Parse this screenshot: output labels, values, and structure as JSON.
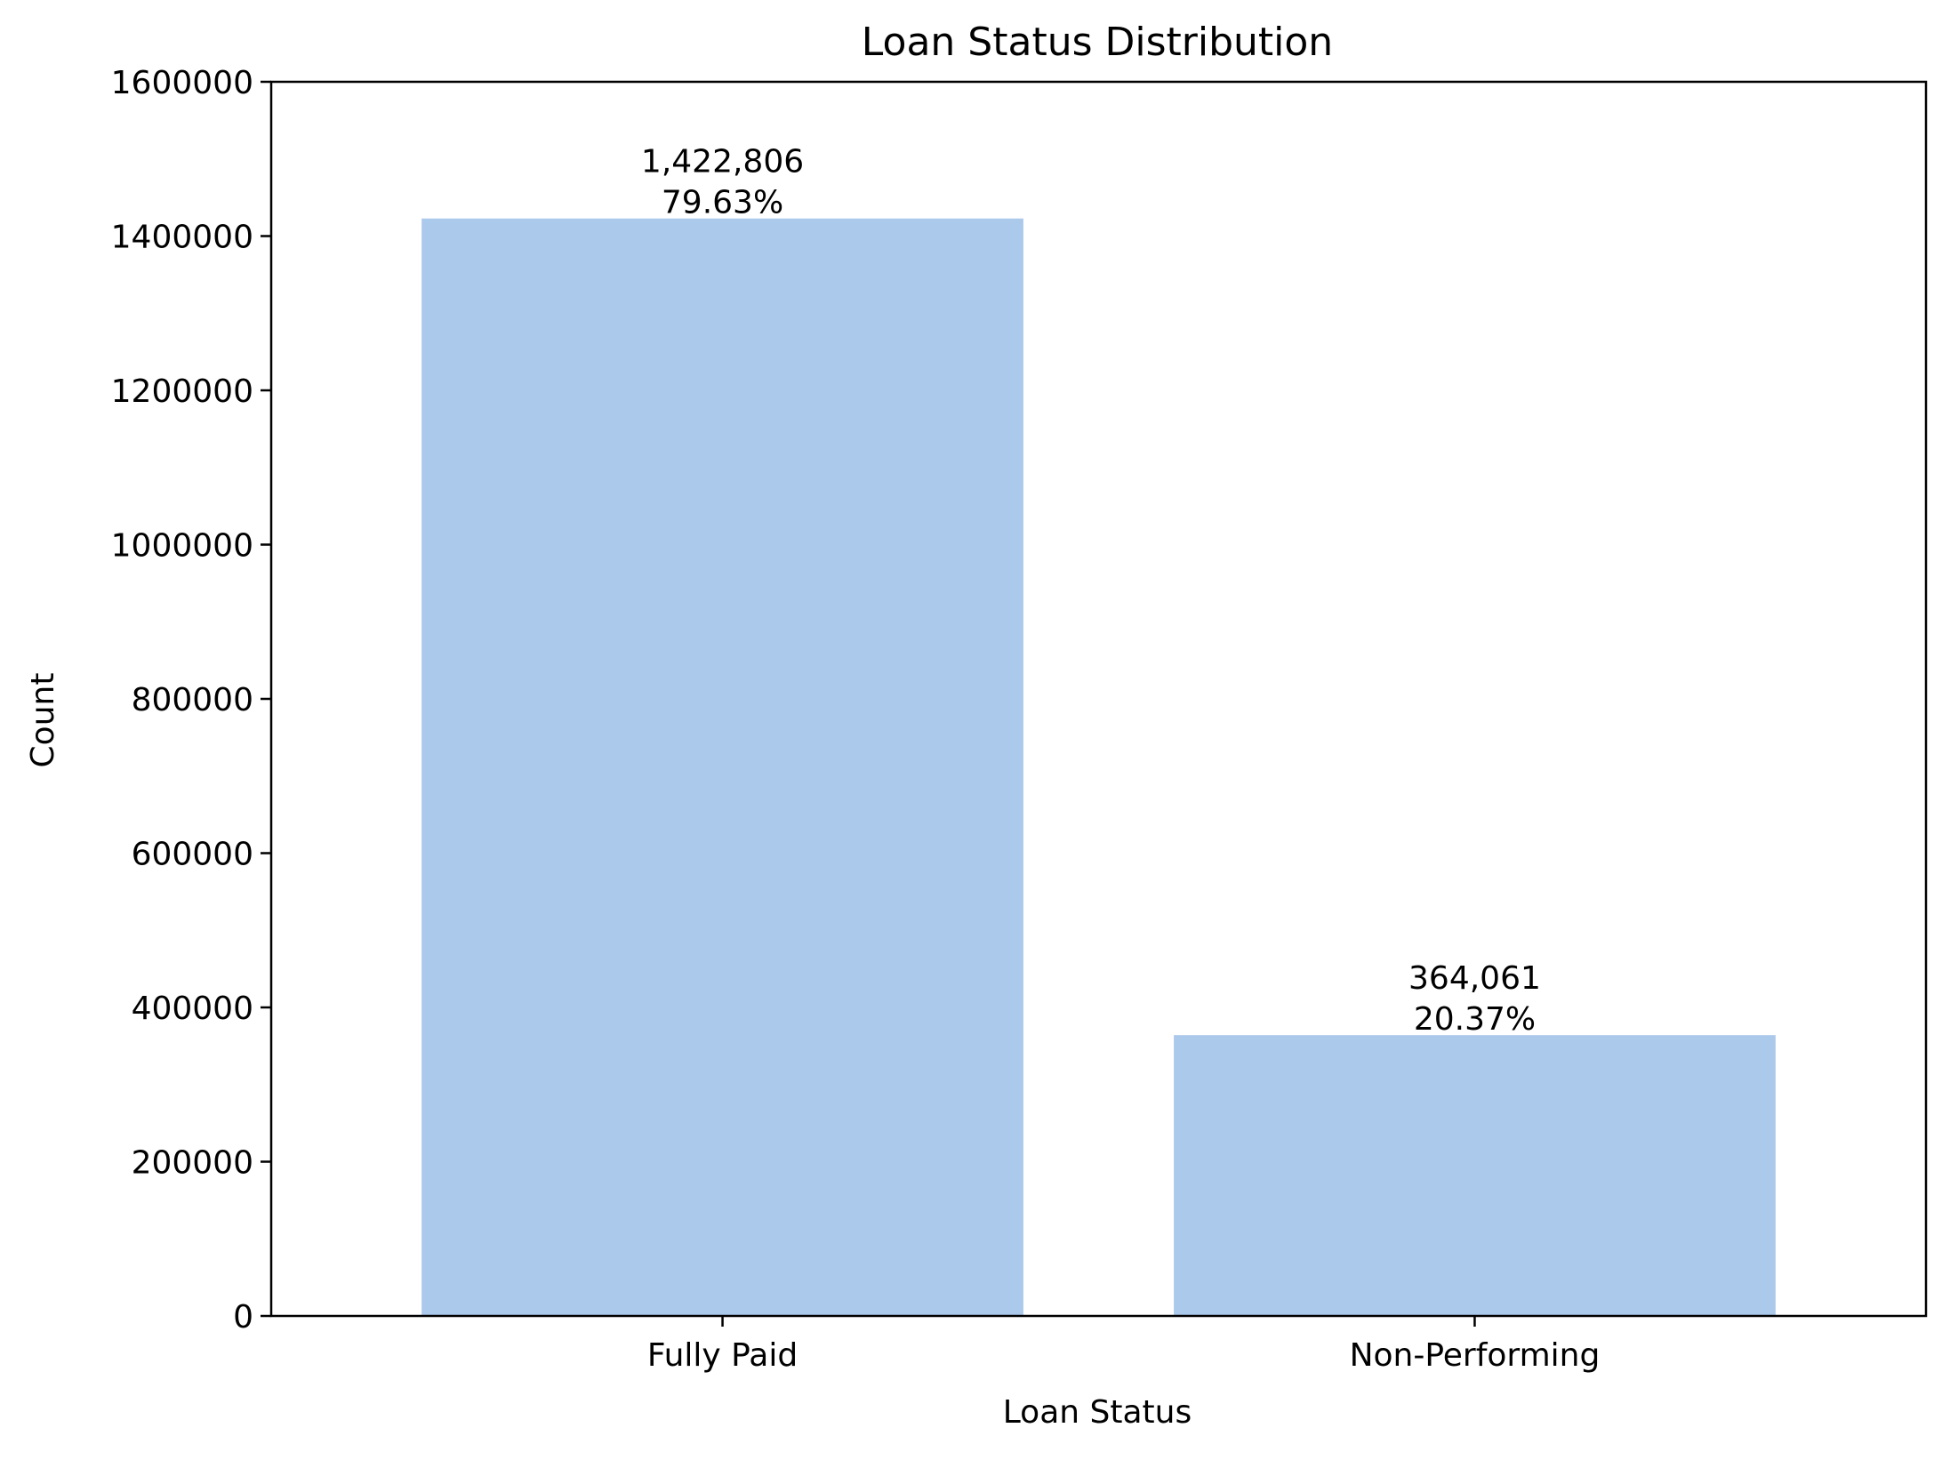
{
  "chart_data": {
    "type": "bar",
    "title": "Loan Status Distribution",
    "xlabel": "Loan Status",
    "ylabel": "Count",
    "categories": [
      "Fully Paid",
      "Non-Performing"
    ],
    "values": [
      1422806,
      364061
    ],
    "value_labels": [
      "1,422,806",
      "364,061"
    ],
    "percent_labels": [
      "79.63%",
      "20.37%"
    ],
    "ylim": [
      0,
      1600000
    ],
    "yticks": [
      0,
      200000,
      400000,
      600000,
      800000,
      1000000,
      1200000,
      1400000,
      1600000
    ],
    "ytick_labels": [
      "0",
      "200000",
      "400000",
      "600000",
      "800000",
      "1000000",
      "1200000",
      "1400000",
      "1600000"
    ],
    "grid": false,
    "legend": "none",
    "colors": {
      "bar": "#abc9eb",
      "axis": "#000000",
      "text": "#000000"
    }
  }
}
